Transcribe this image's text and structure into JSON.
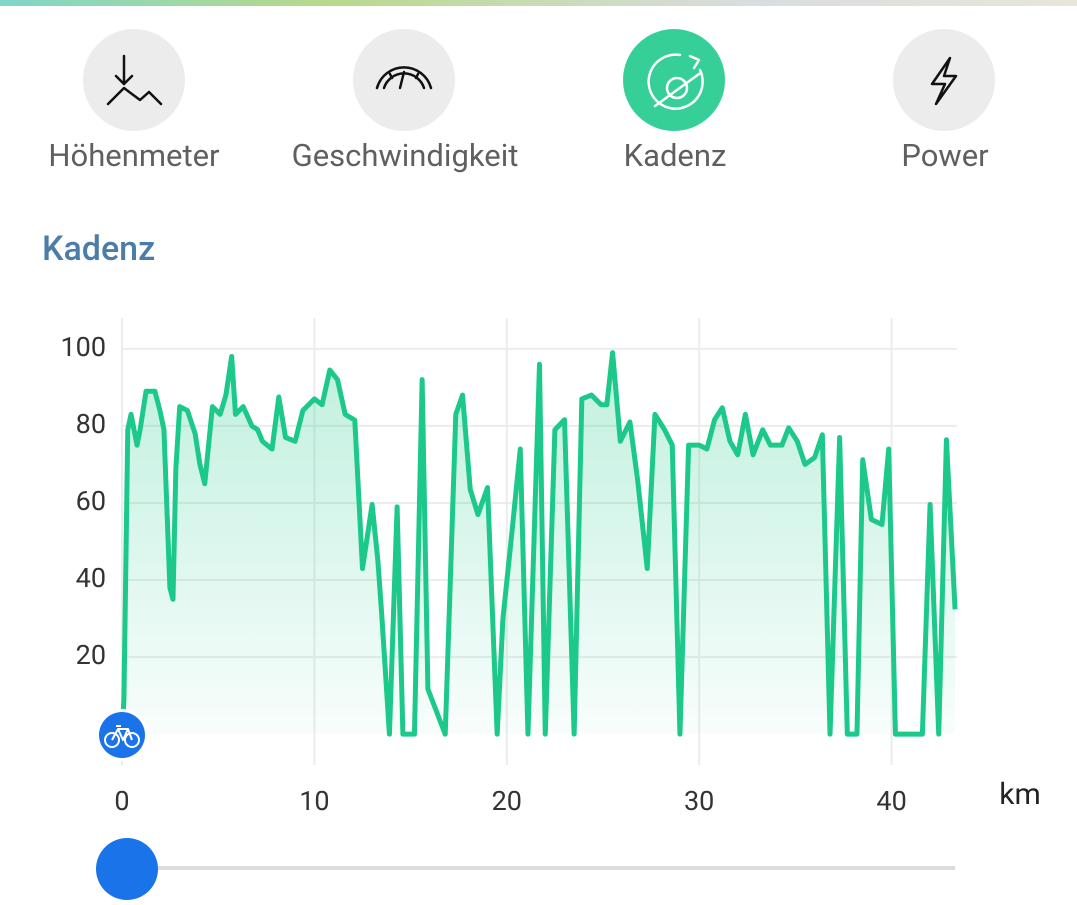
{
  "tabs": [
    {
      "label": "Höhenmeter",
      "active": false
    },
    {
      "label": "Geschwindigkeit",
      "active": false
    },
    {
      "label": "Kadenz",
      "active": true
    },
    {
      "label": "Power",
      "active": false
    }
  ],
  "chart_data": {
    "type": "line",
    "title": "Kadenz",
    "x_label": "km",
    "x": [
      0,
      0.1,
      0.3,
      0.47,
      0.78,
      0.94,
      1.25,
      1.71,
      1.97,
      2.18,
      2.49,
      2.65,
      2.8,
      3.0,
      3.4,
      3.8,
      4.05,
      4.3,
      4.7,
      5.1,
      5.4,
      5.7,
      5.9,
      6.3,
      6.75,
      7.05,
      7.3,
      7.8,
      8.15,
      8.5,
      9.0,
      9.4,
      10.0,
      10.4,
      10.8,
      11.2,
      11.6,
      12.1,
      12.5,
      13.0,
      13.3,
      13.5,
      13.9,
      14.3,
      14.6,
      15.2,
      15.6,
      15.9,
      16.3,
      16.8,
      17.35,
      17.7,
      18.1,
      18.5,
      19.0,
      19.5,
      19.8,
      20.3,
      20.7,
      21.1,
      21.7,
      22.0,
      22.5,
      23.0,
      23.5,
      23.9,
      24.4,
      24.9,
      25.2,
      25.5,
      25.9,
      26.4,
      26.8,
      27.3,
      27.7,
      28.2,
      28.6,
      29.0,
      29.45,
      30.0,
      30.4,
      30.8,
      31.2,
      31.6,
      32.0,
      32.4,
      32.8,
      33.3,
      33.7,
      34.3,
      34.65,
      35.1,
      35.5,
      36.0,
      36.4,
      36.8,
      37.3,
      37.7,
      38.2,
      38.5,
      38.95,
      39.5,
      39.85,
      40.2,
      41.6,
      42.0,
      42.45,
      42.85,
      43.3
    ],
    "series": [
      {
        "color": "#1cc98a",
        "values": [
          0,
          9,
          79,
          83,
          75,
          79,
          89,
          89,
          84,
          79,
          38,
          35,
          69,
          85,
          84,
          78,
          70,
          65,
          85,
          83,
          88,
          98,
          83,
          85,
          80,
          79,
          76,
          74,
          87.5,
          77,
          76,
          84,
          87,
          85.5,
          94.5,
          92,
          83,
          81.5,
          43,
          59.6,
          45,
          31,
          0,
          59,
          0,
          0,
          92,
          11.7,
          6.5,
          0,
          83,
          88,
          63.5,
          57,
          64,
          0,
          30,
          54,
          74,
          0,
          96,
          0,
          79,
          81.6,
          0,
          87,
          88,
          85.5,
          85.5,
          99,
          76,
          81,
          66,
          43,
          83,
          79,
          75,
          0,
          75,
          75,
          74,
          81.6,
          84.7,
          76,
          72.5,
          83,
          72.5,
          79,
          75,
          75,
          79.5,
          76,
          70,
          71.8,
          77.7,
          0,
          77,
          0,
          0,
          71.2,
          55.7,
          54.4,
          74,
          0,
          0,
          59.6,
          0,
          76.4,
          32.4
        ]
      }
    ],
    "xlim": [
      0,
      43.4
    ],
    "ylim": [
      -8,
      108
    ],
    "xticks": [
      0,
      10,
      20,
      30,
      40
    ],
    "yticks": [
      20,
      40,
      60,
      80,
      100
    ],
    "grid": true
  }
}
